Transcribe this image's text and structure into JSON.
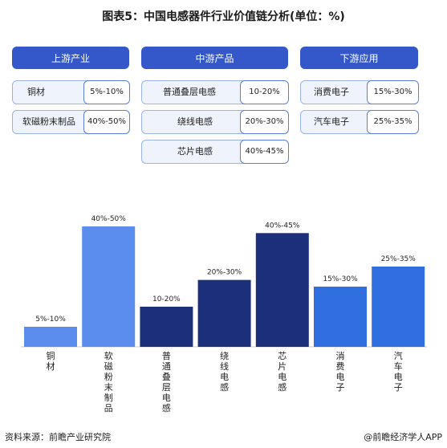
{
  "title": "图表5：中国电感器件行业价值链分析(单位：%)",
  "sections": [
    {
      "title": "上游产业",
      "items": [
        {
          "label": "铜材",
          "value": "5%-10%"
        },
        {
          "label": "软磁粉末制品",
          "value": "40%-50%"
        }
      ]
    },
    {
      "title": "中游产品",
      "items": [
        {
          "label": "普通叠层电感",
          "value": "10-20%"
        },
        {
          "label": "绕线电感",
          "value": "20%-30%"
        },
        {
          "label": "芯片电感",
          "value": "40%-45%"
        }
      ]
    },
    {
      "title": "下游应用",
      "items": [
        {
          "label": "消费电子",
          "value": "15%-30%"
        },
        {
          "label": "汽车电子",
          "value": "25%-35%"
        }
      ]
    }
  ],
  "chart_data": {
    "type": "bar",
    "categories": [
      "铜材",
      "软磁粉末制品",
      "普通叠层电感",
      "绕线电感",
      "芯片电感",
      "消费电子",
      "汽车电子"
    ],
    "values": [
      7.5,
      45,
      15,
      25,
      42.5,
      22.5,
      30
    ],
    "data_labels": [
      "5%-10%",
      "40%-50%",
      "10-20%",
      "20%-30%",
      "40%-45%",
      "15%-30%",
      "25%-35%"
    ],
    "colors": [
      "#5b8def",
      "#5b8def",
      "#1b2f7a",
      "#1b2f7a",
      "#1b2f7a",
      "#2f6fe0",
      "#2f6fe0"
    ],
    "ylim": [
      0,
      50
    ],
    "grid": false,
    "legend": "none"
  },
  "footer": {
    "source": "资料来源：前瞻产业研究院",
    "brand": "@前瞻经济学人APP"
  }
}
